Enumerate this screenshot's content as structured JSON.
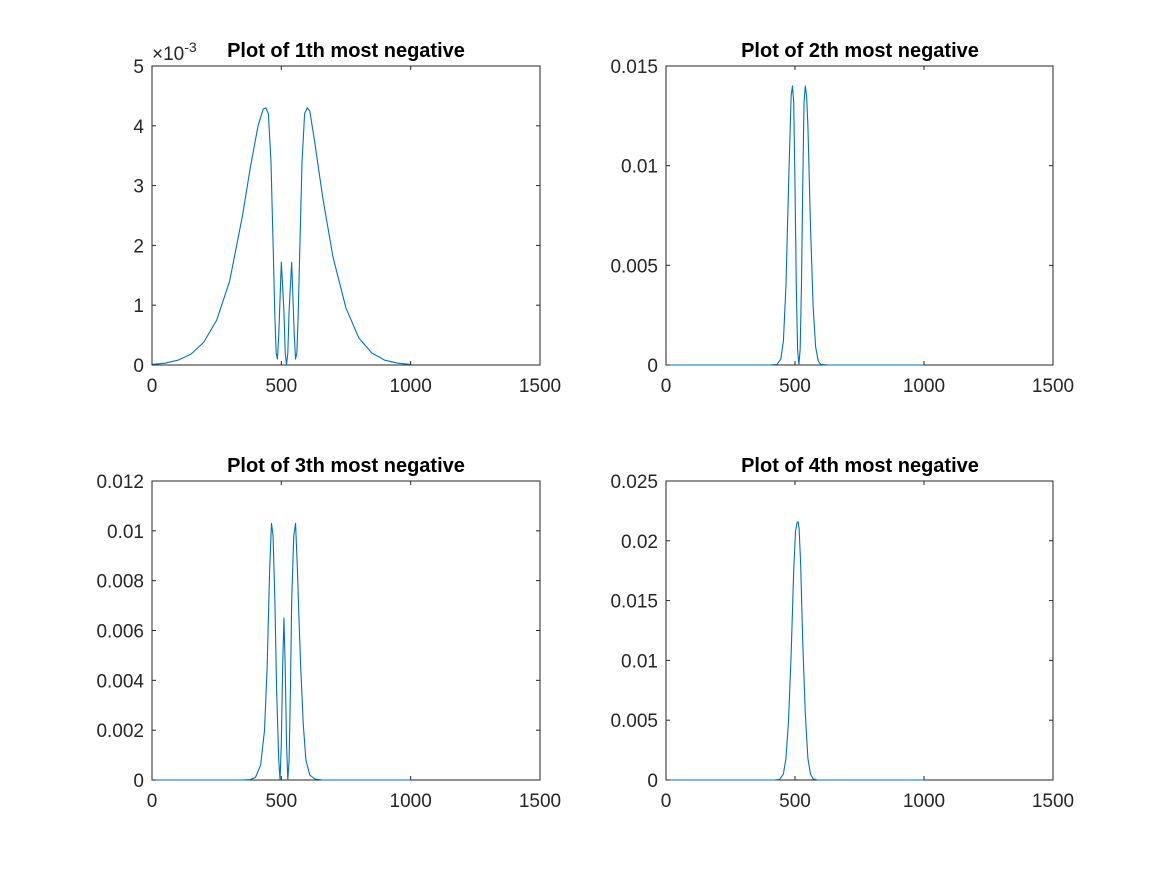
{
  "figure": {
    "line_color": "#0072bd",
    "axes_color": "#262626"
  },
  "chart_data": [
    {
      "type": "line",
      "title": "Plot of 1th most negative",
      "xlabel": "",
      "ylabel": "",
      "xlim": [
        0,
        1500
      ],
      "ylim": [
        0,
        0.005
      ],
      "xticks": [
        0,
        500,
        1000,
        1500
      ],
      "xtick_labels": [
        "0",
        "500",
        "1000",
        "1500"
      ],
      "yticks": [
        0,
        0.001,
        0.002,
        0.003,
        0.004,
        0.005
      ],
      "ytick_labels": [
        "0",
        "1",
        "2",
        "3",
        "4",
        "5"
      ],
      "y_exponent_label": "×10",
      "y_exponent": "-3",
      "grid": false,
      "x": [
        0,
        50,
        100,
        150,
        200,
        250,
        300,
        350,
        380,
        410,
        430,
        440,
        450,
        460,
        470,
        475,
        480,
        485,
        490,
        500,
        510,
        515,
        520,
        525,
        530,
        540,
        550,
        555,
        560,
        565,
        570,
        580,
        590,
        600,
        610,
        630,
        660,
        700,
        750,
        800,
        850,
        900,
        950,
        1000
      ],
      "y": [
        1e-05,
        3e-05,
        8e-05,
        0.00018,
        0.00038,
        0.00075,
        0.0014,
        0.0025,
        0.0033,
        0.004,
        0.00428,
        0.0043,
        0.0042,
        0.0034,
        0.0017,
        0.0008,
        0.0002,
        0.0001,
        0.0005,
        0.00172,
        0.0009,
        0.0002,
        0.0,
        0.0002,
        0.0009,
        0.00172,
        0.0005,
        0.0001,
        0.0002,
        0.0008,
        0.0017,
        0.0034,
        0.0042,
        0.0043,
        0.00425,
        0.0037,
        0.0028,
        0.0018,
        0.00095,
        0.00045,
        0.0002,
        8e-05,
        3e-05,
        1e-05
      ]
    },
    {
      "type": "line",
      "title": "Plot of 2th most negative",
      "xlabel": "",
      "ylabel": "",
      "xlim": [
        0,
        1500
      ],
      "ylim": [
        0,
        0.015
      ],
      "xticks": [
        0,
        500,
        1000,
        1500
      ],
      "xtick_labels": [
        "0",
        "500",
        "1000",
        "1500"
      ],
      "yticks": [
        0,
        0.005,
        0.01,
        0.015
      ],
      "ytick_labels": [
        "0",
        "0.005",
        "0.01",
        "0.015"
      ],
      "grid": false,
      "x": [
        0,
        400,
        430,
        445,
        455,
        465,
        475,
        485,
        490,
        495,
        500,
        505,
        510,
        515,
        520,
        525,
        530,
        535,
        540,
        545,
        550,
        560,
        570,
        580,
        590,
        600,
        630,
        1000
      ],
      "y": [
        0,
        0,
        3e-05,
        0.0003,
        0.0012,
        0.004,
        0.009,
        0.0135,
        0.014,
        0.0132,
        0.009,
        0.004,
        0.0008,
        0.0,
        0.0008,
        0.004,
        0.009,
        0.0132,
        0.014,
        0.0135,
        0.012,
        0.007,
        0.003,
        0.0009,
        0.0002,
        3e-05,
        0,
        0
      ]
    },
    {
      "type": "line",
      "title": "Plot of 3th most negative",
      "xlabel": "",
      "ylabel": "",
      "xlim": [
        0,
        1500
      ],
      "ylim": [
        0,
        0.012
      ],
      "xticks": [
        0,
        500,
        1000,
        1500
      ],
      "xtick_labels": [
        "0",
        "500",
        "1000",
        "1500"
      ],
      "yticks": [
        0,
        0.002,
        0.004,
        0.006,
        0.008,
        0.01,
        0.012
      ],
      "ytick_labels": [
        "0",
        "0.002",
        "0.004",
        "0.006",
        "0.008",
        "0.01",
        "0.012"
      ],
      "grid": false,
      "x": [
        0,
        350,
        380,
        400,
        420,
        435,
        445,
        455,
        462,
        468,
        475,
        482,
        490,
        495,
        500,
        505,
        510,
        515,
        520,
        525,
        530,
        535,
        540,
        548,
        555,
        562,
        568,
        575,
        585,
        595,
        610,
        630,
        660,
        700,
        1000
      ],
      "y": [
        0,
        0,
        2e-05,
        0.0001,
        0.0006,
        0.002,
        0.0045,
        0.0085,
        0.0103,
        0.0098,
        0.0072,
        0.0035,
        0.0008,
        0.0,
        0.0015,
        0.0045,
        0.0065,
        0.0045,
        0.0015,
        0.0,
        0.0008,
        0.0035,
        0.0072,
        0.0098,
        0.0103,
        0.0085,
        0.0065,
        0.0045,
        0.0022,
        0.0008,
        0.0002,
        4e-05,
        0,
        0,
        0
      ]
    },
    {
      "type": "line",
      "title": "Plot of 4th most negative",
      "xlabel": "",
      "ylabel": "",
      "xlim": [
        0,
        1500
      ],
      "ylim": [
        0,
        0.025
      ],
      "xticks": [
        0,
        500,
        1000,
        1500
      ],
      "xtick_labels": [
        "0",
        "500",
        "1000",
        "1500"
      ],
      "yticks": [
        0,
        0.005,
        0.01,
        0.015,
        0.02,
        0.025
      ],
      "ytick_labels": [
        "0",
        "0.005",
        "0.01",
        "0.015",
        "0.02",
        "0.025"
      ],
      "grid": false,
      "x": [
        0,
        420,
        440,
        455,
        465,
        475,
        485,
        495,
        502,
        508,
        512,
        516,
        522,
        530,
        540,
        550,
        560,
        570,
        585,
        600,
        1000
      ],
      "y": [
        0,
        0,
        5e-05,
        0.0005,
        0.0018,
        0.005,
        0.0105,
        0.0175,
        0.0208,
        0.0215,
        0.0216,
        0.021,
        0.018,
        0.0115,
        0.0055,
        0.0018,
        0.0005,
        0.0001,
        1e-05,
        0,
        0
      ]
    }
  ]
}
